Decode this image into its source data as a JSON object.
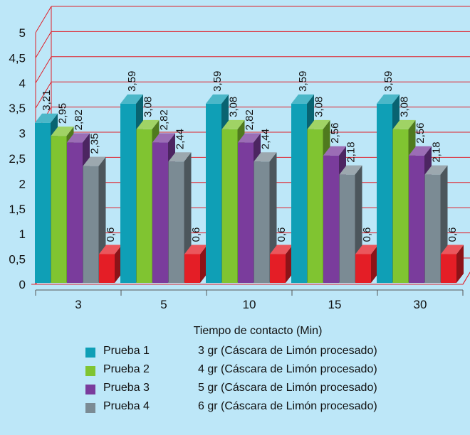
{
  "chart_data": {
    "type": "bar",
    "xlabel": "Tiempo de contacto (Min)",
    "ylabel": "",
    "categories": [
      "3",
      "5",
      "10",
      "15",
      "30"
    ],
    "ylim": [
      0,
      5
    ],
    "yticks": [
      "0",
      "0,5",
      "1",
      "1,5",
      "2",
      "2,5",
      "3",
      "3,5",
      "4",
      "4,5",
      "5"
    ],
    "grid": true,
    "three_d": true,
    "decimal_separator": ",",
    "series": [
      {
        "name": "Prueba 1",
        "description": "3 gr (Cáscara de Limón procesado)",
        "color": "#0f9fb6",
        "values": [
          3.21,
          3.59,
          3.59,
          3.59,
          3.59
        ],
        "labels": [
          "3,21",
          "3,59",
          "3,59",
          "3,59",
          "3,59"
        ]
      },
      {
        "name": "Prueba 2",
        "description": "4 gr (Cáscara de Limón procesado)",
        "color": "#80c431",
        "values": [
          2.95,
          3.08,
          3.08,
          3.08,
          3.08
        ],
        "labels": [
          "2,95",
          "3,08",
          "3,08",
          "3,08",
          "3,08"
        ]
      },
      {
        "name": "Prueba 3",
        "description": "5 gr (Cáscara de Limón procesado)",
        "color": "#7a3c9c",
        "values": [
          2.82,
          2.82,
          2.82,
          2.56,
          2.56
        ],
        "labels": [
          "2,82",
          "2,82",
          "2,82",
          "2,56",
          "2,56"
        ]
      },
      {
        "name": "Prueba 4",
        "description": "6 gr (Cáscara de Limón procesado)",
        "color": "#7b8b94",
        "values": [
          2.35,
          2.44,
          2.44,
          2.18,
          2.18
        ],
        "labels": [
          "2,35",
          "2,44",
          "2,44",
          "2,18",
          "2,18"
        ]
      },
      {
        "name": "",
        "description": "",
        "color": "#e41e26",
        "values": [
          0.6,
          0.6,
          0.6,
          0.6,
          0.6
        ],
        "labels": [
          "0,6",
          "0,6",
          "0,6",
          "0,6",
          "0,6"
        ]
      }
    ],
    "legend_position": "bottom",
    "grid_color": "#e0202a"
  }
}
